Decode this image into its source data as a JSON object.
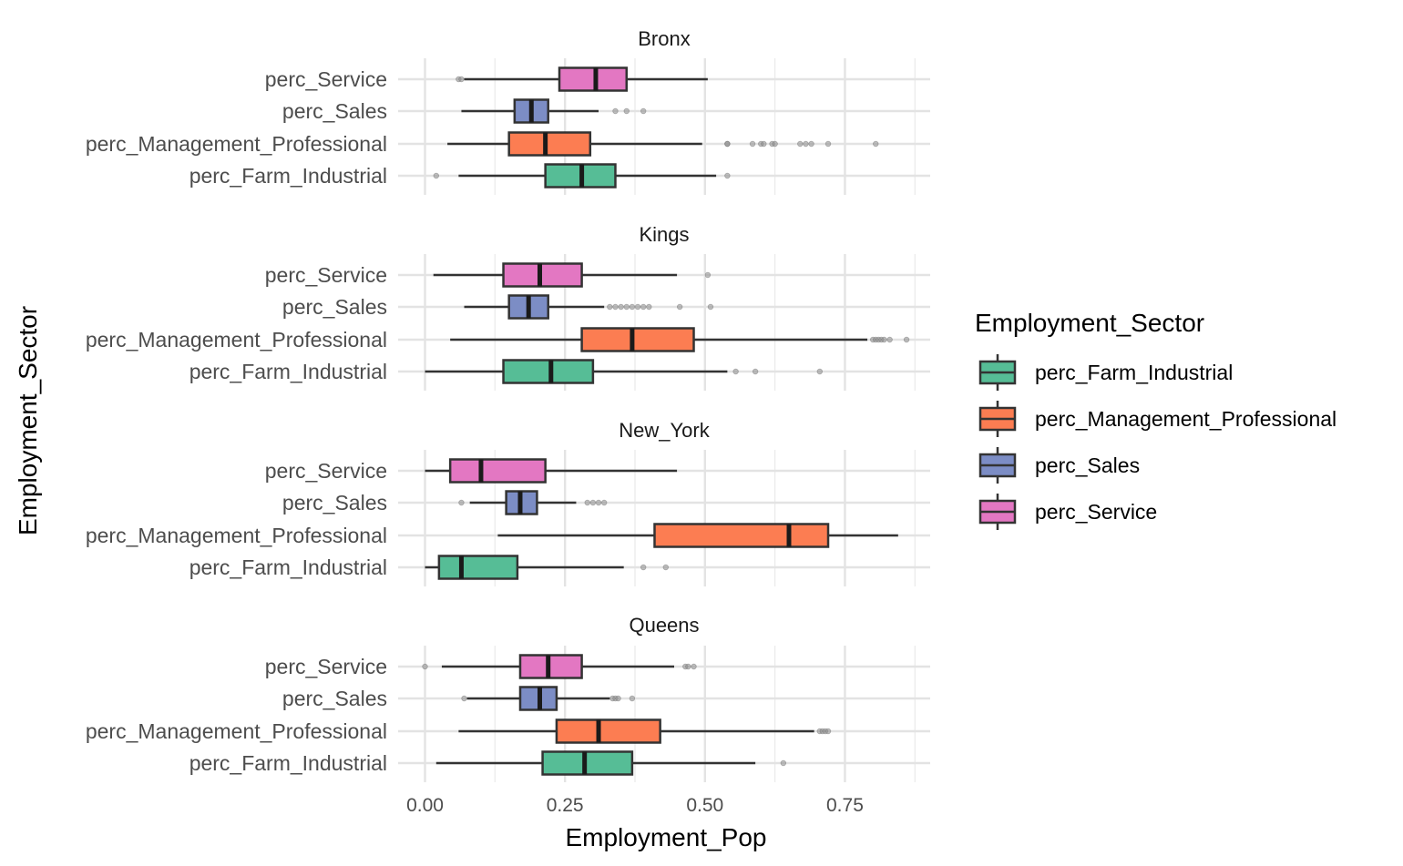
{
  "chart_data": {
    "type": "boxplot",
    "orientation": "horizontal",
    "xlabel": "Employment_Pop",
    "ylabel": "Employment_Sector",
    "xlim": [
      -0.005,
      0.9
    ],
    "x_ticks": [
      "0.00",
      "0.25",
      "0.50",
      "0.75"
    ],
    "x_tick_values": [
      0,
      0.25,
      0.5,
      0.75
    ],
    "grid": true,
    "legend_placement": "right",
    "legend": {
      "title": "Employment_Sector",
      "entries": [
        {
          "label": "perc_Farm_Industrial",
          "color": "#56BD96"
        },
        {
          "label": "perc_Management_Professional",
          "color": "#FC7D52"
        },
        {
          "label": "perc_Sales",
          "color": "#7C8DC5"
        },
        {
          "label": "perc_Service",
          "color": "#E377C2"
        }
      ]
    },
    "categories": [
      "perc_Service",
      "perc_Sales",
      "perc_Management_Professional",
      "perc_Farm_Industrial"
    ],
    "colors": {
      "perc_Farm_Industrial": "#56BD96",
      "perc_Management_Professional": "#FC7D52",
      "perc_Sales": "#7C8DC5",
      "perc_Service": "#E377C2"
    },
    "facets": [
      {
        "label": "Bronx",
        "boxes": [
          {
            "category": "perc_Service",
            "whisker_low": 0.07,
            "q1": 0.24,
            "median": 0.305,
            "q3": 0.36,
            "whisker_high": 0.505,
            "outliers": [
              0.06,
              0.065
            ]
          },
          {
            "category": "perc_Sales",
            "whisker_low": 0.065,
            "q1": 0.16,
            "median": 0.19,
            "q3": 0.22,
            "whisker_high": 0.31,
            "outliers": [
              0.34,
              0.36,
              0.39
            ]
          },
          {
            "category": "perc_Management_Professional",
            "whisker_low": 0.04,
            "q1": 0.15,
            "median": 0.215,
            "q3": 0.295,
            "whisker_high": 0.495,
            "outliers": [
              0.54,
              0.54,
              0.585,
              0.6,
              0.605,
              0.62,
              0.625,
              0.67,
              0.68,
              0.69,
              0.72,
              0.805
            ]
          },
          {
            "category": "perc_Farm_Industrial",
            "whisker_low": 0.06,
            "q1": 0.215,
            "median": 0.28,
            "q3": 0.34,
            "whisker_high": 0.52,
            "outliers": [
              0.02,
              0.54
            ]
          }
        ]
      },
      {
        "label": "Kings",
        "boxes": [
          {
            "category": "perc_Service",
            "whisker_low": 0.015,
            "q1": 0.14,
            "median": 0.205,
            "q3": 0.28,
            "whisker_high": 0.45,
            "outliers": [
              0.505
            ]
          },
          {
            "category": "perc_Sales",
            "whisker_low": 0.07,
            "q1": 0.15,
            "median": 0.185,
            "q3": 0.22,
            "whisker_high": 0.32,
            "outliers": [
              0.33,
              0.34,
              0.35,
              0.36,
              0.37,
              0.38,
              0.39,
              0.4,
              0.455,
              0.51
            ]
          },
          {
            "category": "perc_Management_Professional",
            "whisker_low": 0.045,
            "q1": 0.28,
            "median": 0.37,
            "q3": 0.48,
            "whisker_high": 0.79,
            "outliers": [
              0.8,
              0.805,
              0.81,
              0.815,
              0.82,
              0.83,
              0.86
            ]
          },
          {
            "category": "perc_Farm_Industrial",
            "whisker_low": 0.0,
            "q1": 0.14,
            "median": 0.225,
            "q3": 0.3,
            "whisker_high": 0.54,
            "outliers": [
              0.555,
              0.59,
              0.705
            ]
          }
        ]
      },
      {
        "label": "New_York",
        "boxes": [
          {
            "category": "perc_Service",
            "whisker_low": 0.0,
            "q1": 0.045,
            "median": 0.1,
            "q3": 0.215,
            "whisker_high": 0.45,
            "outliers": []
          },
          {
            "category": "perc_Sales",
            "whisker_low": 0.08,
            "q1": 0.145,
            "median": 0.17,
            "q3": 0.2,
            "whisker_high": 0.27,
            "outliers": [
              0.065,
              0.29,
              0.3,
              0.31,
              0.32
            ]
          },
          {
            "category": "perc_Management_Professional",
            "whisker_low": 0.13,
            "q1": 0.41,
            "median": 0.65,
            "q3": 0.72,
            "whisker_high": 0.845,
            "outliers": []
          },
          {
            "category": "perc_Farm_Industrial",
            "whisker_low": 0.0,
            "q1": 0.025,
            "median": 0.065,
            "q3": 0.165,
            "whisker_high": 0.355,
            "outliers": [
              0.39,
              0.43
            ]
          }
        ]
      },
      {
        "label": "Queens",
        "boxes": [
          {
            "category": "perc_Service",
            "whisker_low": 0.03,
            "q1": 0.17,
            "median": 0.22,
            "q3": 0.28,
            "whisker_high": 0.445,
            "outliers": [
              0.0,
              0.465,
              0.47,
              0.48
            ]
          },
          {
            "category": "perc_Sales",
            "whisker_low": 0.075,
            "q1": 0.17,
            "median": 0.205,
            "q3": 0.235,
            "whisker_high": 0.33,
            "outliers": [
              0.07,
              0.335,
              0.34,
              0.345,
              0.37
            ]
          },
          {
            "category": "perc_Management_Professional",
            "whisker_low": 0.06,
            "q1": 0.235,
            "median": 0.31,
            "q3": 0.42,
            "whisker_high": 0.695,
            "outliers": [
              0.705,
              0.71,
              0.715,
              0.72
            ]
          },
          {
            "category": "perc_Farm_Industrial",
            "whisker_low": 0.02,
            "q1": 0.21,
            "median": 0.285,
            "q3": 0.37,
            "whisker_high": 0.59,
            "outliers": [
              0.64
            ]
          }
        ]
      }
    ]
  }
}
